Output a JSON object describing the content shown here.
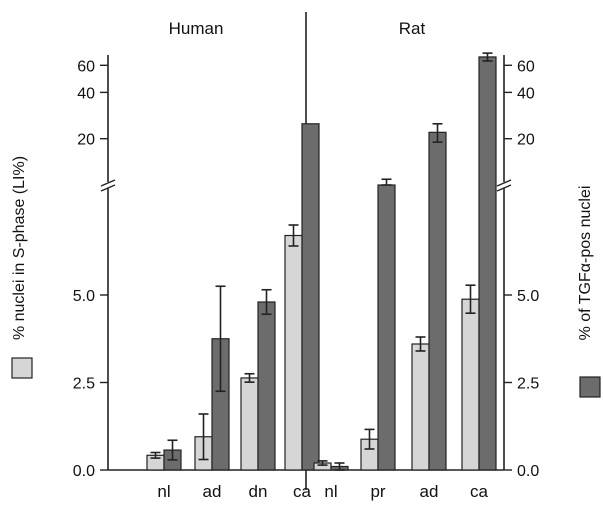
{
  "chart_data": {
    "type": "bar",
    "panels": [
      {
        "title": "Human",
        "categories": [
          "nl",
          "ad",
          "dn",
          "ca"
        ],
        "series": [
          {
            "values": [
              0.42,
              0.95,
              2.63,
              6.7
            ],
            "errors": [
              0.08,
              0.65,
              0.12,
              0.3
            ]
          },
          {
            "values": [
              0.57,
              3.75,
              4.8,
              25
            ],
            "errors": [
              0.28,
              1.5,
              0.35,
              null
            ]
          }
        ]
      },
      {
        "title": "Rat",
        "categories": [
          "nl",
          "pr",
          "ad",
          "ca"
        ],
        "series": [
          {
            "values": [
              0.2,
              0.88,
              3.6,
              4.88
            ],
            "errors": [
              0.06,
              0.28,
              0.2,
              0.4
            ]
          },
          {
            "values": [
              0.1,
              9.6,
              22,
              68
            ],
            "errors": [
              0.1,
              1.3,
              3,
              4
            ]
          }
        ]
      }
    ],
    "left_axis": {
      "label": "% nuclei in S-phase (LI%)",
      "lower_ticks": [
        "0.0",
        "2.5",
        "5.0"
      ],
      "upper_ticks": [
        "20",
        "40",
        "60"
      ],
      "lower_range": [
        0,
        10.1
      ],
      "upper_range": [
        10.1,
        70
      ],
      "axis_break": true
    },
    "right_axis": {
      "label": "% of TGFα-pos nuclei",
      "lower_ticks": [
        "0.0",
        "2.5",
        "5.0"
      ],
      "upper_ticks": [
        "20",
        "40",
        "60"
      ]
    },
    "colors": {
      "light_series": "#d6d6d6",
      "dark_series": "#6c6c6c",
      "error_bar": "#222222"
    }
  }
}
